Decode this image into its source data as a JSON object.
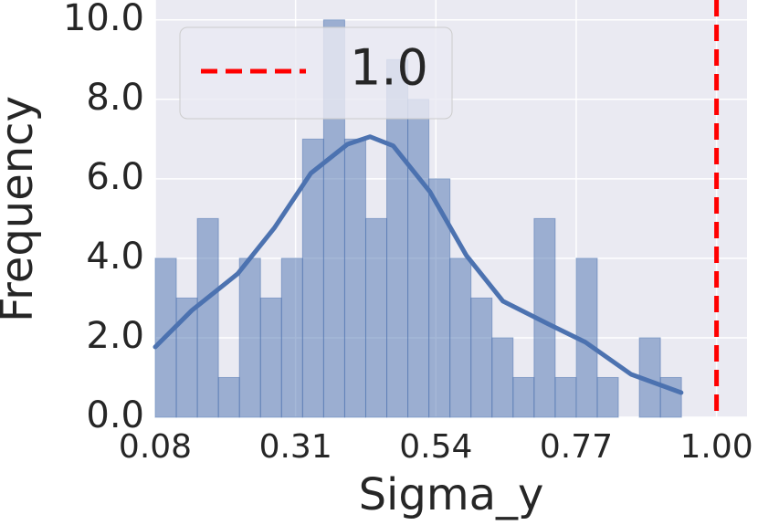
{
  "chart_data": {
    "type": "histogram",
    "xlabel": "Sigma_y",
    "ylabel": "Frequency",
    "bins": [
      0.08,
      0.1145,
      0.149,
      0.1835,
      0.218,
      0.2525,
      0.287,
      0.3215,
      0.356,
      0.3905,
      0.425,
      0.4595,
      0.494,
      0.5285,
      0.563,
      0.5975,
      0.632,
      0.6665,
      0.701,
      0.7355,
      0.77,
      0.8045,
      0.839,
      0.8735,
      0.908,
      0.9425
    ],
    "values": [
      4,
      3,
      5,
      1,
      4,
      3,
      4,
      7,
      10,
      7,
      5,
      9,
      8,
      6,
      4,
      3,
      2,
      1,
      5,
      1,
      4,
      1,
      0,
      2,
      1
    ],
    "color": "#4c72b0",
    "kde": {
      "x": [
        0.08,
        0.14,
        0.215,
        0.275,
        0.335,
        0.395,
        0.432,
        0.47,
        0.53,
        0.59,
        0.65,
        0.725,
        0.785,
        0.86,
        0.942
      ],
      "y": [
        1.77,
        2.69,
        3.61,
        4.76,
        6.14,
        6.87,
        7.06,
        6.83,
        5.68,
        4.07,
        2.92,
        2.34,
        1.89,
        1.08,
        0.62
      ],
      "color": "#4c72b0"
    },
    "vline": {
      "name": "1.0",
      "x": 1,
      "color": "#ff0000"
    },
    "xlim": [
      0.08,
      1.05
    ],
    "ylim": [
      0,
      10.5
    ],
    "xticks": [
      0.08,
      0.31,
      0.54,
      0.77,
      {
        "value": 1,
        "label": "1.00"
      }
    ],
    "yticks": [
      {
        "value": 0,
        "label": "0.0"
      },
      {
        "value": 2,
        "label": "2.0"
      },
      {
        "value": 4,
        "label": "4.0"
      },
      {
        "value": 6,
        "label": "6.0"
      },
      {
        "value": 8,
        "label": "8.0"
      },
      {
        "value": 10,
        "label": "10.0"
      }
    ],
    "grid": true
  }
}
